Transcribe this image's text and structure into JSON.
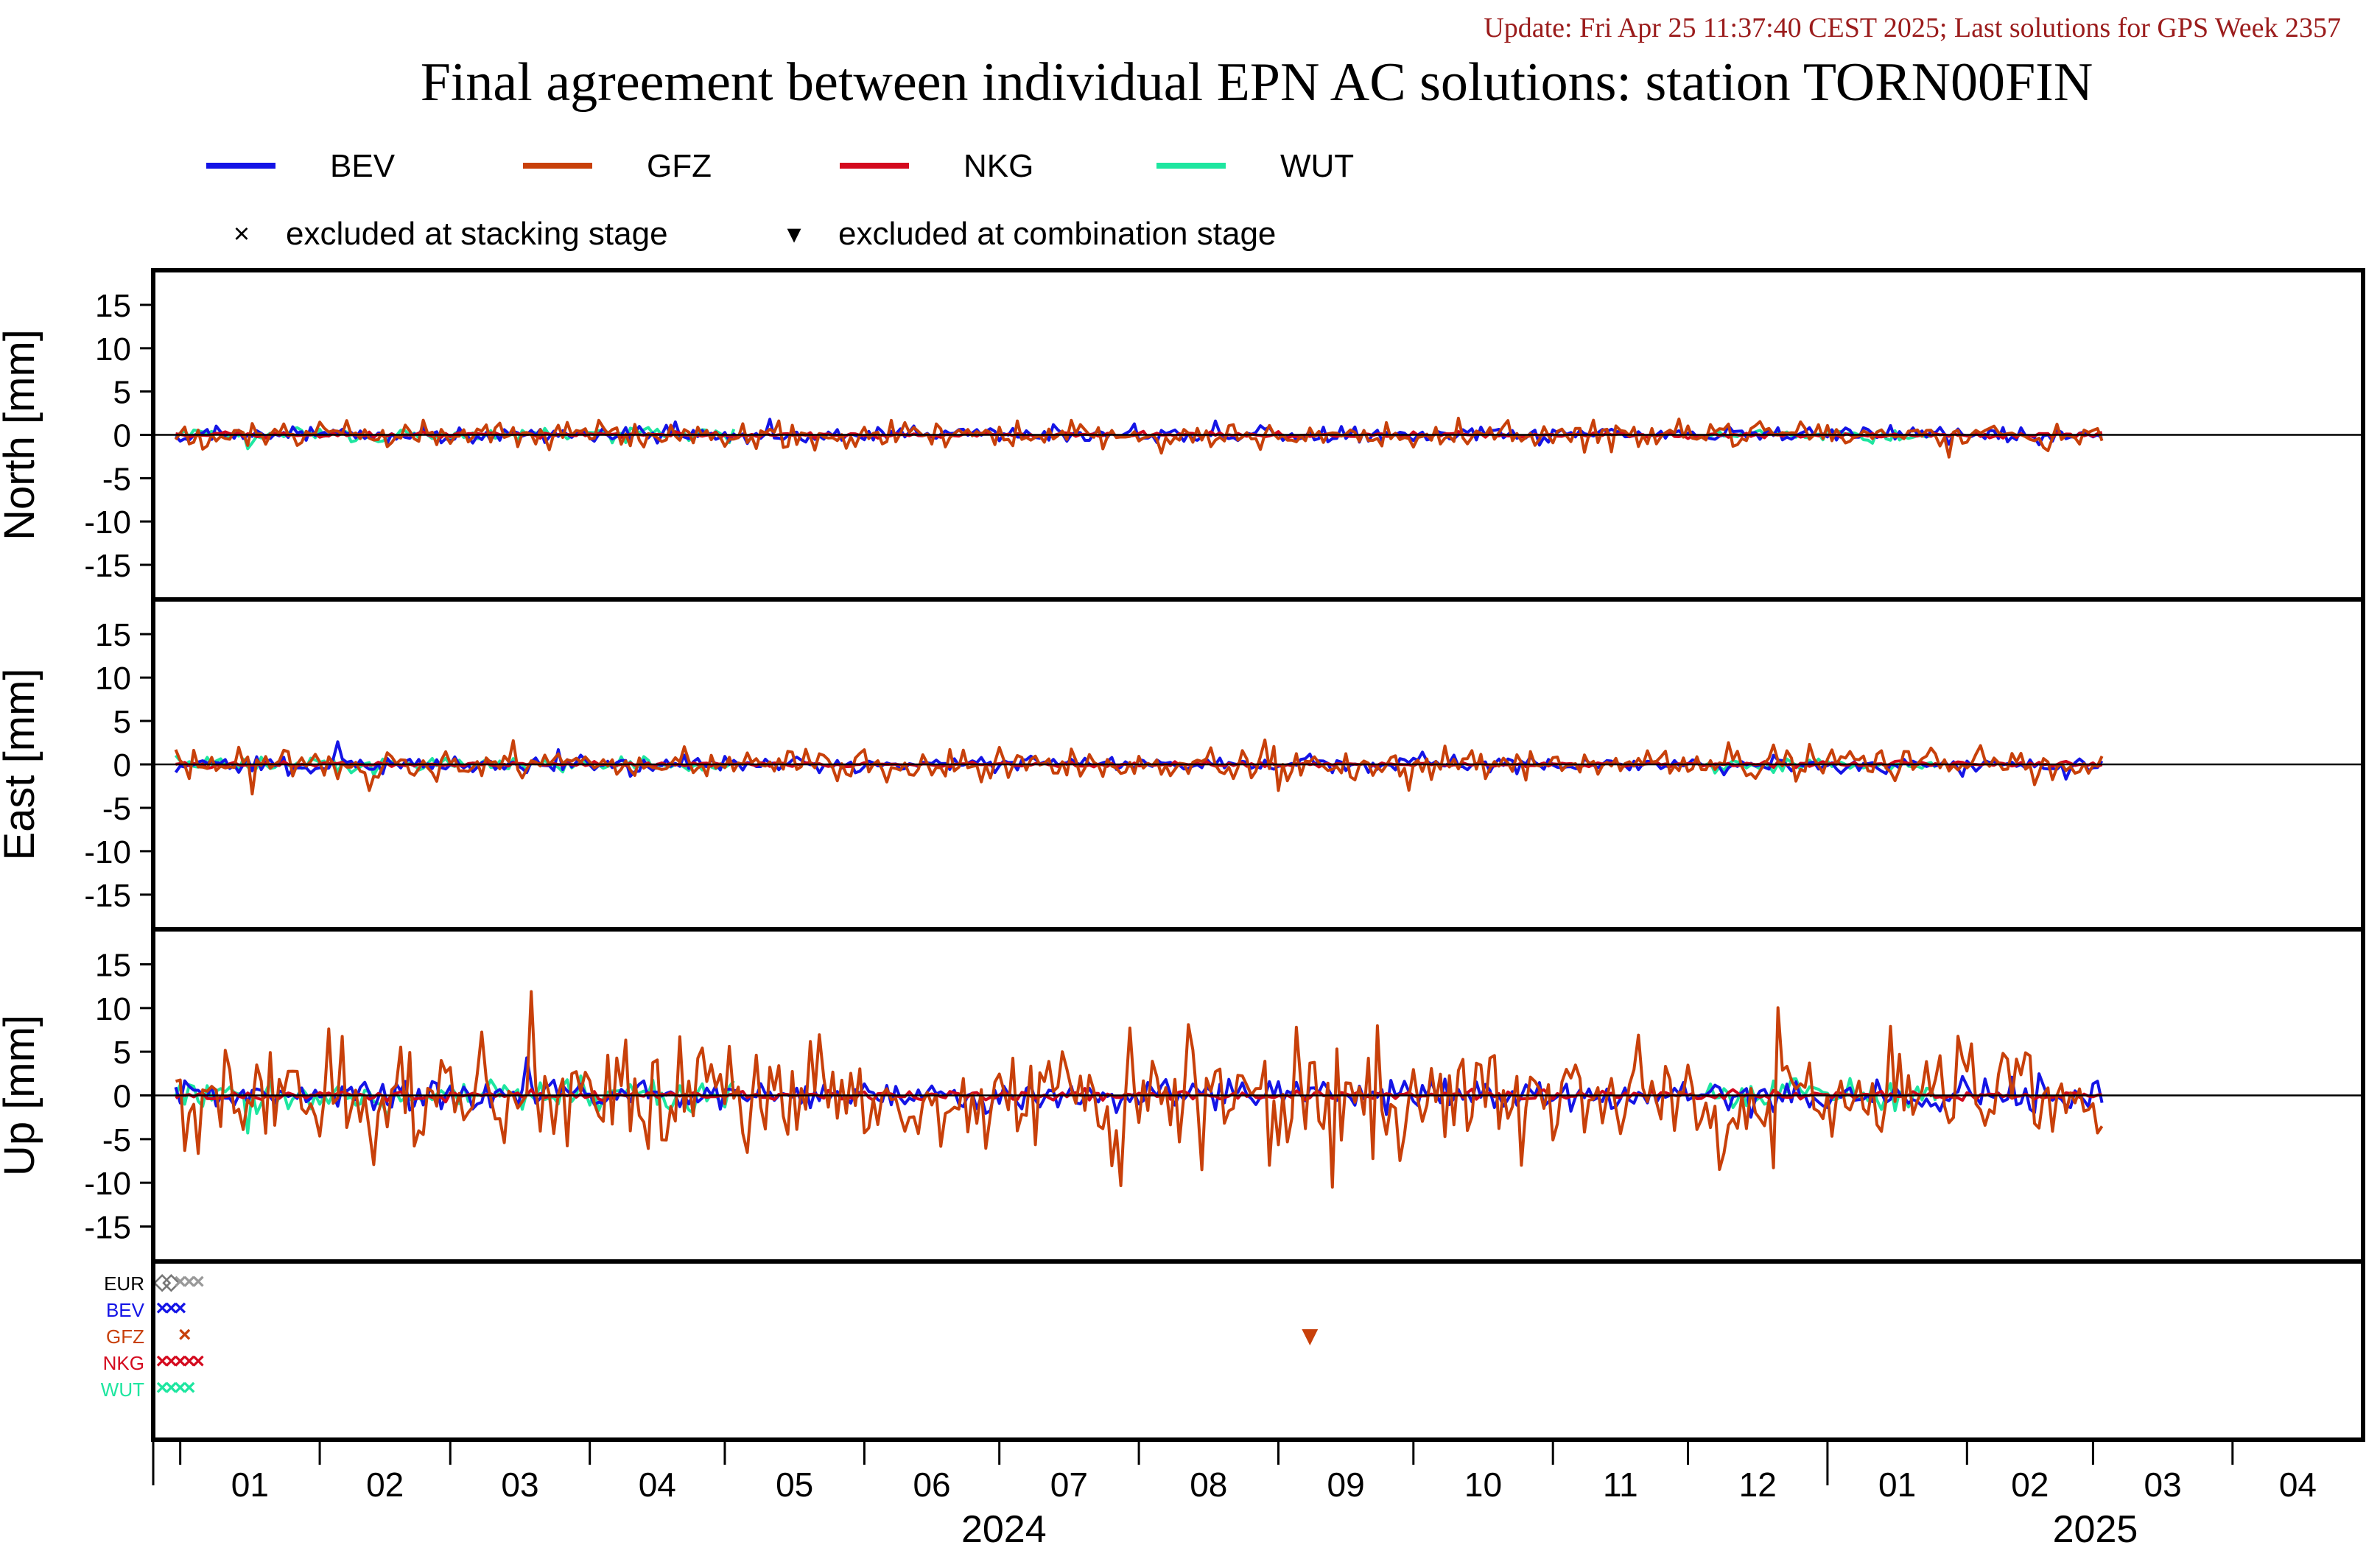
{
  "header": {
    "update_line": "Update: Fri Apr 25 11:37:40 CEST 2025; Last solutions for GPS Week 2357",
    "title": "Final agreement between individual EPN AC solutions: station TORN00FIN"
  },
  "colors": {
    "update_text": "#9b1c1c",
    "BEV": "#1414e6",
    "GFZ": "#c8400a",
    "NKG": "#d40a1e",
    "WUT": "#1ee6a0",
    "EUR": "#000000"
  },
  "legend": {
    "series": [
      "BEV",
      "GFZ",
      "NKG",
      "WUT"
    ],
    "markers": [
      {
        "symbol": "×",
        "label": "excluded at stacking stage"
      },
      {
        "symbol": "▾",
        "label": "excluded at combination stage"
      }
    ]
  },
  "chart_data": [
    {
      "type": "line",
      "panel": "north",
      "ylabel": "North [mm]",
      "ylim": [
        -19,
        19
      ],
      "yticks": [
        15,
        10,
        5,
        0,
        -5,
        -10,
        -15
      ],
      "xlim": [
        "2023-12-26",
        "2025-04-30"
      ],
      "amplitude_mm": {
        "BEV": 0.45,
        "GFZ": 0.75,
        "NKG": 0.15,
        "WUT": 0.4
      },
      "spikes": [
        {
          "series": "BEV",
          "x": "2024-04-20",
          "y": 1.5
        },
        {
          "series": "BEV",
          "x": "2024-05-11",
          "y": 1.8
        },
        {
          "series": "BEV",
          "x": "2024-08-18",
          "y": 1.6
        },
        {
          "series": "WUT",
          "x": "2024-01-16",
          "y": -1.6
        },
        {
          "series": "GFZ",
          "x": "2024-11-08",
          "y": -2.0
        },
        {
          "series": "GFZ",
          "x": "2024-12-26",
          "y": 1.5
        }
      ]
    },
    {
      "type": "line",
      "panel": "east",
      "ylabel": "East [mm]",
      "ylim": [
        -19,
        19
      ],
      "yticks": [
        15,
        10,
        5,
        0,
        -5,
        -10,
        -15
      ],
      "xlim": [
        "2023-12-26",
        "2025-04-30"
      ],
      "amplitude_mm": {
        "BEV": 0.45,
        "GFZ": 0.95,
        "NKG": 0.15,
        "WUT": 0.4
      },
      "spikes": [
        {
          "series": "BEV",
          "x": "2024-02-05",
          "y": 2.6
        },
        {
          "series": "BEV",
          "x": "2024-03-25",
          "y": 1.7
        },
        {
          "series": "GFZ",
          "x": "2024-01-17",
          "y": -3.4
        },
        {
          "series": "GFZ",
          "x": "2024-02-12",
          "y": -3.0
        },
        {
          "series": "GFZ",
          "x": "2024-09-01",
          "y": -3.0
        },
        {
          "series": "GFZ",
          "x": "2024-12-10",
          "y": 2.5
        },
        {
          "series": "GFZ",
          "x": "2024-12-28",
          "y": 2.3
        }
      ]
    },
    {
      "type": "line",
      "panel": "up",
      "ylabel": "Up [mm]",
      "ylim": [
        -19,
        19
      ],
      "yticks": [
        15,
        10,
        5,
        0,
        -5,
        -10,
        -15
      ],
      "xlim": [
        "2023-12-26",
        "2025-04-30"
      ],
      "amplitude_mm": {
        "BEV": 0.9,
        "GFZ": 3.3,
        "NKG": 0.25,
        "WUT": 0.9
      },
      "spikes": [
        {
          "series": "GFZ",
          "x": "2024-01-02",
          "y": -6.3
        },
        {
          "series": "GFZ",
          "x": "2024-02-03",
          "y": 7.6
        },
        {
          "series": "GFZ",
          "x": "2024-08-12",
          "y": 8.1
        },
        {
          "series": "GFZ",
          "x": "2024-08-15",
          "y": -8.5
        },
        {
          "series": "GFZ",
          "x": "2024-08-30",
          "y": -8.0
        },
        {
          "series": "GFZ",
          "x": "2024-10-25",
          "y": -8.0
        },
        {
          "series": "GFZ",
          "x": "2024-11-20",
          "y": 6.9
        },
        {
          "series": "GFZ",
          "x": "2025-01-15",
          "y": 7.9
        },
        {
          "series": "GFZ",
          "x": "2025-03-02",
          "y": -4.3
        },
        {
          "series": "BEV",
          "x": "2024-03-18",
          "y": 4.3
        },
        {
          "series": "WUT",
          "x": "2024-01-16",
          "y": -4.3
        }
      ]
    },
    {
      "type": "scatter",
      "panel": "exclusions",
      "rows": [
        "EUR",
        "BEV",
        "GFZ",
        "NKG",
        "WUT"
      ],
      "xlim": [
        "2023-12-26",
        "2025-04-30"
      ],
      "points": [
        {
          "row": "EUR",
          "symbol": "◇",
          "dates": [
            "2023-12-28",
            "2023-12-30"
          ]
        },
        {
          "row": "EUR",
          "symbol": "×",
          "dates": [
            "2024-01-01",
            "2024-01-03",
            "2024-01-05"
          ]
        },
        {
          "row": "BEV",
          "symbol": "×",
          "dates": [
            "2023-12-28",
            "2023-12-30",
            "2024-01-01"
          ]
        },
        {
          "row": "GFZ",
          "symbol": "×",
          "dates": [
            "2024-01-02"
          ]
        },
        {
          "row": "NKG",
          "symbol": "×",
          "dates": [
            "2023-12-28",
            "2023-12-30",
            "2024-01-01",
            "2024-01-03",
            "2024-01-05"
          ]
        },
        {
          "row": "WUT",
          "symbol": "×",
          "dates": [
            "2023-12-28",
            "2023-12-30",
            "2024-01-01",
            "2024-01-03"
          ]
        },
        {
          "row": "GFZ_combination",
          "symbol": "▾",
          "dates": [
            "2024-09-08"
          ]
        }
      ]
    }
  ],
  "xaxis": {
    "month_labels": [
      "01",
      "02",
      "03",
      "04",
      "05",
      "06",
      "07",
      "08",
      "09",
      "10",
      "11",
      "12",
      "01",
      "02",
      "03",
      "04"
    ],
    "year_labels": [
      "2024",
      "2025"
    ]
  }
}
